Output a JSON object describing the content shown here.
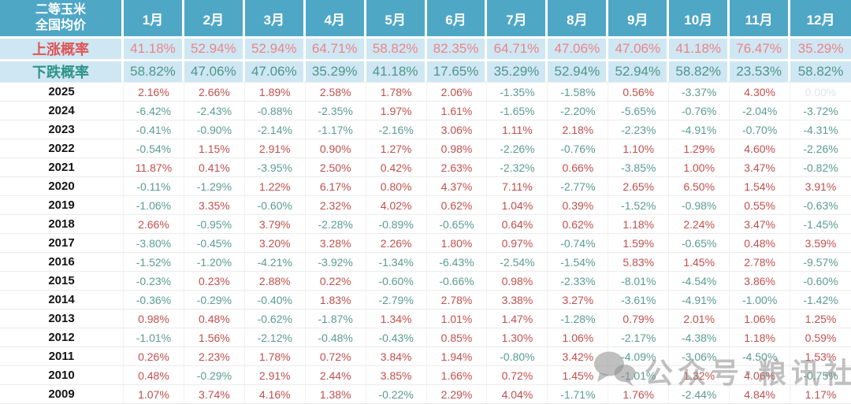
{
  "chart_data": {
    "type": "table",
    "title": "二等玉米 全国均价",
    "corner": {
      "line1": "二等玉米",
      "line2": "全国均价"
    },
    "columns": [
      "1月",
      "2月",
      "3月",
      "4月",
      "5月",
      "6月",
      "7月",
      "8月",
      "9月",
      "10月",
      "11月",
      "12月"
    ],
    "rise_probability": {
      "label": "上涨概率",
      "values": [
        "41.18%",
        "52.94%",
        "52.94%",
        "64.71%",
        "58.82%",
        "82.35%",
        "64.71%",
        "47.06%",
        "47.06%",
        "41.18%",
        "76.47%",
        "35.29%"
      ]
    },
    "fall_probability": {
      "label": "下跌概率",
      "values": [
        "58.82%",
        "47.06%",
        "47.06%",
        "35.29%",
        "41.18%",
        "17.65%",
        "35.29%",
        "52.94%",
        "52.94%",
        "58.82%",
        "23.53%",
        "58.82%"
      ]
    },
    "rows": [
      {
        "year": "2025",
        "values": [
          "2.16%",
          "2.66%",
          "1.89%",
          "2.58%",
          "1.78%",
          "2.06%",
          "-1.35%",
          "-1.58%",
          "0.56%",
          "-3.37%",
          "4.30%",
          "0.00%"
        ]
      },
      {
        "year": "2024",
        "values": [
          "-6.42%",
          "-2.43%",
          "-0.88%",
          "-2.35%",
          "1.97%",
          "1.61%",
          "-1.65%",
          "-2.20%",
          "-5.65%",
          "-0.76%",
          "-2.04%",
          "-3.72%"
        ]
      },
      {
        "year": "2023",
        "values": [
          "-0.41%",
          "-0.90%",
          "-2.14%",
          "-1.17%",
          "-2.16%",
          "3.06%",
          "1.11%",
          "2.18%",
          "-2.23%",
          "-4.91%",
          "-0.70%",
          "-4.31%"
        ]
      },
      {
        "year": "2022",
        "values": [
          "-0.54%",
          "1.15%",
          "2.91%",
          "0.90%",
          "1.27%",
          "0.98%",
          "-2.26%",
          "-0.76%",
          "1.10%",
          "1.29%",
          "4.60%",
          "-2.26%"
        ]
      },
      {
        "year": "2021",
        "values": [
          "11.87%",
          "0.41%",
          "-3.95%",
          "2.50%",
          "0.42%",
          "2.63%",
          "-2.32%",
          "0.66%",
          "-3.85%",
          "1.00%",
          "3.47%",
          "-0.82%"
        ]
      },
      {
        "year": "2020",
        "values": [
          "-0.11%",
          "-1.29%",
          "1.22%",
          "6.17%",
          "0.80%",
          "4.37%",
          "7.11%",
          "-2.77%",
          "2.65%",
          "6.50%",
          "1.54%",
          "3.91%"
        ]
      },
      {
        "year": "2019",
        "values": [
          "-1.06%",
          "3.35%",
          "-0.60%",
          "2.32%",
          "4.02%",
          "0.62%",
          "1.04%",
          "0.39%",
          "-1.52%",
          "-0.98%",
          "0.55%",
          "-0.63%"
        ]
      },
      {
        "year": "2018",
        "values": [
          "2.66%",
          "-0.95%",
          "3.79%",
          "-2.28%",
          "-0.89%",
          "-0.65%",
          "0.64%",
          "0.62%",
          "1.18%",
          "2.24%",
          "3.47%",
          "-1.45%"
        ]
      },
      {
        "year": "2017",
        "values": [
          "-3.80%",
          "-0.45%",
          "3.20%",
          "3.28%",
          "2.26%",
          "1.80%",
          "0.97%",
          "-0.74%",
          "1.59%",
          "-0.65%",
          "0.48%",
          "3.59%"
        ]
      },
      {
        "year": "2016",
        "values": [
          "-1.52%",
          "-1.20%",
          "-4.21%",
          "-3.92%",
          "-1.34%",
          "-6.43%",
          "-2.54%",
          "-1.54%",
          "5.83%",
          "1.45%",
          "2.78%",
          "-9.57%"
        ]
      },
      {
        "year": "2015",
        "values": [
          "-0.23%",
          "0.23%",
          "2.88%",
          "0.22%",
          "-0.60%",
          "-0.66%",
          "0.98%",
          "-2.33%",
          "-8.01%",
          "-4.54%",
          "3.86%",
          "-0.60%"
        ]
      },
      {
        "year": "2014",
        "values": [
          "-0.36%",
          "-0.29%",
          "-0.40%",
          "1.83%",
          "-2.79%",
          "2.78%",
          "3.38%",
          "3.27%",
          "-3.61%",
          "-4.91%",
          "-1.00%",
          "-1.42%"
        ]
      },
      {
        "year": "2013",
        "values": [
          "0.98%",
          "0.48%",
          "-0.62%",
          "-1.87%",
          "1.34%",
          "1.01%",
          "1.47%",
          "-1.28%",
          "0.79%",
          "2.01%",
          "1.06%",
          "1.25%"
        ]
      },
      {
        "year": "2012",
        "values": [
          "-1.01%",
          "1.56%",
          "-2.12%",
          "-0.48%",
          "-0.43%",
          "0.85%",
          "1.30%",
          "1.06%",
          "-2.17%",
          "-4.38%",
          "1.18%",
          "0.59%"
        ]
      },
      {
        "year": "2011",
        "values": [
          "0.26%",
          "2.23%",
          "1.78%",
          "0.72%",
          "3.84%",
          "1.94%",
          "-0.80%",
          "3.42%",
          "-4.09%",
          "-3.06%",
          "-4.50%",
          "1.53%"
        ]
      },
      {
        "year": "2010",
        "values": [
          "0.48%",
          "-0.29%",
          "2.91%",
          "2.44%",
          "3.85%",
          "1.66%",
          "0.72%",
          "1.45%",
          "-1.01%",
          "1.32%",
          "4.06%",
          "-0.75%"
        ]
      },
      {
        "year": "2009",
        "values": [
          "1.07%",
          "3.74%",
          "4.16%",
          "1.38%",
          "-0.22%",
          "2.29%",
          "4.04%",
          "-1.71%",
          "1.76%",
          "-2.44%",
          "4.84%",
          "1.17%"
        ]
      }
    ]
  },
  "watermark": {
    "text": "公众号·粮讯社"
  },
  "colors": {
    "header_bg": "#4FA7C6",
    "probability_row_bg": "#CEE7F2",
    "rise_label": "#E05458",
    "rise_value": "#EC838B",
    "fall_label": "#2E9389",
    "fall_value": "#4F968B",
    "positive_value": "#C0504D",
    "negative_value": "#5B9C8F",
    "zero_value": "#DCE7E4"
  }
}
